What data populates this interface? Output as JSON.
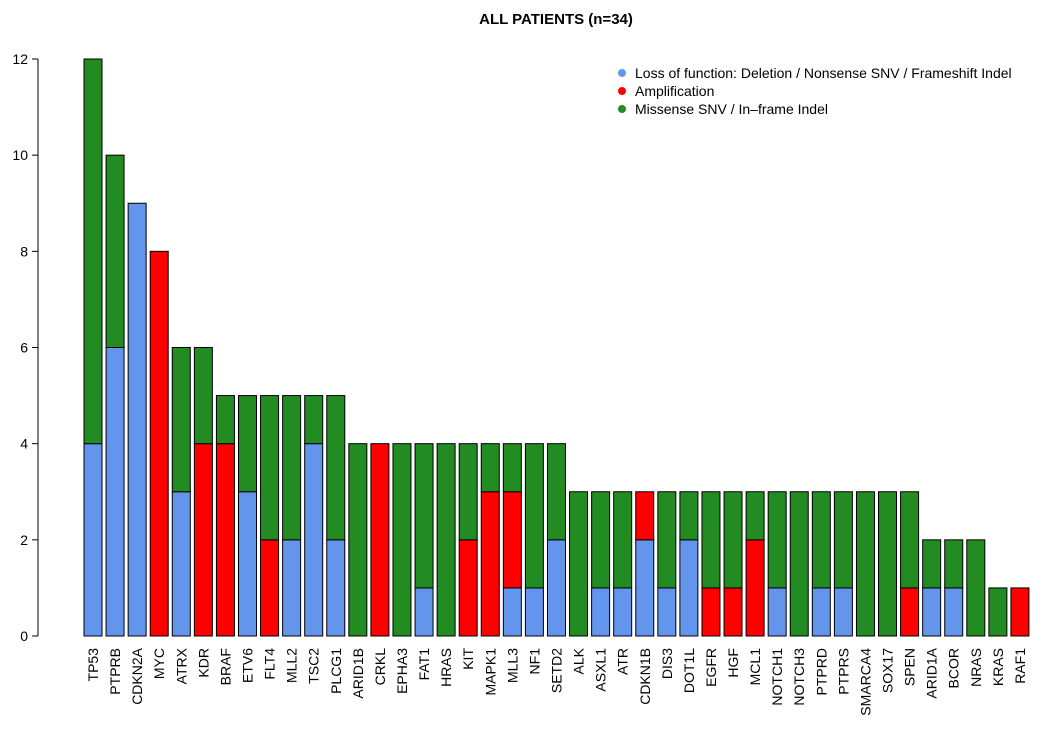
{
  "chart_data": {
    "type": "bar",
    "stacked": true,
    "title": "ALL PATIENTS (n=34)",
    "xlabel": "",
    "ylabel": "",
    "ylim": [
      0,
      12
    ],
    "yticks": [
      0,
      2,
      4,
      6,
      8,
      10,
      12
    ],
    "grid": false,
    "legend_position": "top-right",
    "categories": [
      "TP53",
      "PTPRB",
      "CDKN2A",
      "MYC",
      "ATRX",
      "KDR",
      "BRAF",
      "ETV6",
      "FLT4",
      "MLL2",
      "TSC2",
      "PLCG1",
      "ARID1B",
      "CRKL",
      "EPHA3",
      "FAT1",
      "HRAS",
      "KIT",
      "MAPK1",
      "MLL3",
      "NF1",
      "SETD2",
      "ALK",
      "ASXL1",
      "ATR",
      "CDKN1B",
      "DIS3",
      "DOT1L",
      "EGFR",
      "HGF",
      "MCL1",
      "NOTCH1",
      "NOTCH3",
      "PTPRD",
      "PTPRS",
      "SMARCA4",
      "SOX17",
      "SPEN",
      "ARID1A",
      "BCOR",
      "NRAS",
      "KRAS",
      "RAF1"
    ],
    "series": [
      {
        "name": "Loss of function: Deletion / Nonsense SNV / Frameshift Indel",
        "color": "#6495ED",
        "values": [
          4,
          6,
          9,
          0,
          3,
          0,
          0,
          3,
          0,
          2,
          4,
          2,
          0,
          0,
          0,
          1,
          0,
          0,
          0,
          1,
          1,
          2,
          0,
          1,
          1,
          2,
          1,
          2,
          0,
          0,
          0,
          1,
          0,
          1,
          1,
          0,
          0,
          0,
          1,
          1,
          0,
          0,
          0
        ]
      },
      {
        "name": "Amplification",
        "color": "#FF0000",
        "values": [
          0,
          0,
          0,
          8,
          0,
          4,
          4,
          0,
          2,
          0,
          0,
          0,
          0,
          4,
          0,
          0,
          0,
          2,
          3,
          2,
          0,
          0,
          0,
          0,
          0,
          1,
          0,
          0,
          1,
          1,
          2,
          0,
          0,
          0,
          0,
          0,
          0,
          1,
          0,
          0,
          0,
          0,
          1
        ]
      },
      {
        "name": "Missense SNV / In–frame Indel",
        "color": "#228B22",
        "values": [
          8,
          4,
          0,
          0,
          3,
          2,
          1,
          2,
          3,
          3,
          1,
          3,
          4,
          0,
          4,
          3,
          4,
          2,
          1,
          1,
          3,
          2,
          3,
          2,
          2,
          0,
          2,
          1,
          2,
          2,
          1,
          2,
          3,
          2,
          2,
          3,
          3,
          2,
          1,
          1,
          2,
          1,
          0
        ]
      }
    ]
  }
}
